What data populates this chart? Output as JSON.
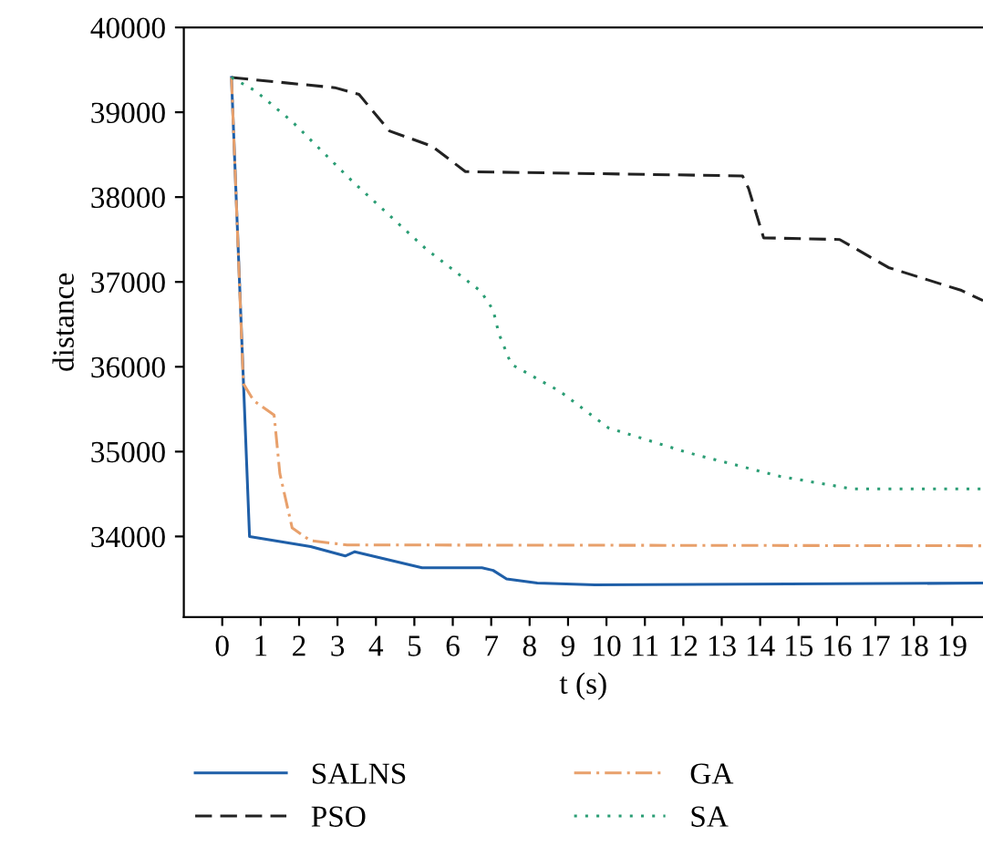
{
  "chart_data": {
    "type": "line",
    "xlabel": "t (s)",
    "ylabel": "distance",
    "xlim": [
      -1,
      19.8
    ],
    "ylim": [
      33050,
      40000
    ],
    "xticks": [
      0,
      1,
      2,
      3,
      4,
      5,
      6,
      7,
      8,
      9,
      10,
      11,
      12,
      13,
      14,
      15,
      16,
      17,
      18,
      19
    ],
    "yticks": [
      34000,
      35000,
      36000,
      37000,
      38000,
      39000,
      40000
    ],
    "grid": false,
    "legend": "bottom",
    "marker": "none",
    "series": [
      {
        "name": "SALNS",
        "color": "#1f5fa8",
        "line_style": "solid",
        "x": [
          0.24,
          0.71,
          2.3,
          3.2,
          3.45,
          5.2,
          6.76,
          7.05,
          7.4,
          8.2,
          9.7,
          19.8
        ],
        "values": [
          39410,
          34000,
          33880,
          33770,
          33820,
          33630,
          33630,
          33600,
          33500,
          33450,
          33430,
          33450
        ]
      },
      {
        "name": "PSO",
        "color": "#222222",
        "line_style": "dashed",
        "x": [
          0.24,
          2.93,
          3.56,
          4.35,
          5.46,
          6.33,
          13.54,
          13.7,
          14.09,
          16.07,
          17.34,
          19.24,
          19.8
        ],
        "values": [
          39410,
          39290,
          39210,
          38780,
          38600,
          38300,
          38250,
          38100,
          37520,
          37500,
          37170,
          36900,
          36780
        ]
      },
      {
        "name": "GA",
        "color": "#e8a06b",
        "line_style": "dashdot",
        "x": [
          0.24,
          0.55,
          0.82,
          1.35,
          1.5,
          1.82,
          2.3,
          3.25,
          19.8
        ],
        "values": [
          39410,
          35800,
          35600,
          35430,
          34740,
          34100,
          33950,
          33900,
          33890
        ]
      },
      {
        "name": "SA",
        "color": "#2a9d74",
        "line_style": "dotted",
        "x": [
          0.24,
          0.87,
          1.82,
          3.4,
          5.3,
          6.73,
          7.05,
          7.2,
          7.52,
          8.79,
          10.05,
          12.1,
          14.5,
          16.4,
          19.8
        ],
        "values": [
          39410,
          39250,
          38890,
          38180,
          37390,
          36890,
          36670,
          36390,
          36030,
          35710,
          35280,
          34990,
          34710,
          34560,
          34560
        ]
      }
    ]
  }
}
